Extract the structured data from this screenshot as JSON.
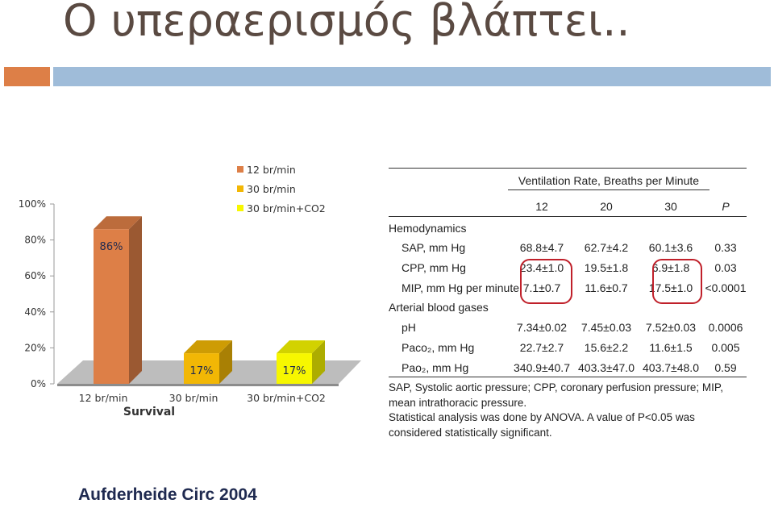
{
  "slide": {
    "title": "Ο υπεραερισμός βλάπτει..",
    "citation": "Aufderheide Circ 2004",
    "colors": {
      "accent_orange": "#dd7f47",
      "accent_blue": "#9fbcd9"
    }
  },
  "chart_data": [
    {
      "type": "bar",
      "categories": [
        "12 br/min",
        "30 br/min",
        "30 br/min+CO2"
      ],
      "series": [
        {
          "name": "12 br/min",
          "color": "#dd7f47",
          "values": [
            86,
            null,
            null
          ]
        },
        {
          "name": "30 br/min",
          "color": "#f2b705",
          "values": [
            null,
            17,
            null
          ]
        },
        {
          "name": "30 br/min+CO2",
          "color": "#f7f700",
          "values": [
            null,
            null,
            17
          ]
        }
      ],
      "data_labels": [
        "86%",
        "17%",
        "17%"
      ],
      "xlabel": "Survival",
      "ylabel": "",
      "ylim": [
        0,
        100
      ],
      "y_ticks": [
        "0%",
        "20%",
        "40%",
        "60%",
        "80%",
        "100%"
      ],
      "legend_position": "top-right",
      "style": "3d"
    },
    {
      "type": "table",
      "group_header": "Ventilation Rate, Breaths per Minute",
      "columns": [
        "12",
        "20",
        "30",
        "P"
      ],
      "rows": [
        {
          "label": "Hemodynamics",
          "section": true,
          "values": []
        },
        {
          "label": "SAP, mm Hg",
          "values": [
            "68.8±4.7",
            "62.7±4.2",
            "60.1±3.6",
            "0.33"
          ]
        },
        {
          "label": "CPP, mm Hg",
          "values": [
            "23.4±1.0",
            "19.5±1.8",
            "6.9±1.8",
            "0.03"
          ]
        },
        {
          "label": "MIP, mm Hg per minute",
          "values": [
            "7.1±0.7",
            "11.6±0.7",
            "17.5±1.0",
            "<0.0001"
          ]
        },
        {
          "label": "Arterial blood gases",
          "section": true,
          "values": []
        },
        {
          "label": "pH",
          "values": [
            "7.34±0.02",
            "7.45±0.03",
            "7.52±0.03",
            "0.0006"
          ]
        },
        {
          "label": "Paco₂, mm Hg",
          "values": [
            "22.7±2.7",
            "15.6±2.2",
            "11.6±1.5",
            "0.005"
          ]
        },
        {
          "label": "Pao₂, mm Hg",
          "values": [
            "340.9±40.7",
            "403.3±47.0",
            "403.7±48.0",
            "0.59"
          ]
        }
      ],
      "footnotes": [
        "SAP, Systolic aortic pressure; CPP, coronary perfusion pressure; MIP, mean intrathoracic pressure.",
        "Statistical analysis was done by ANOVA. A value of P<0.05 was considered statistically significant."
      ]
    }
  ]
}
